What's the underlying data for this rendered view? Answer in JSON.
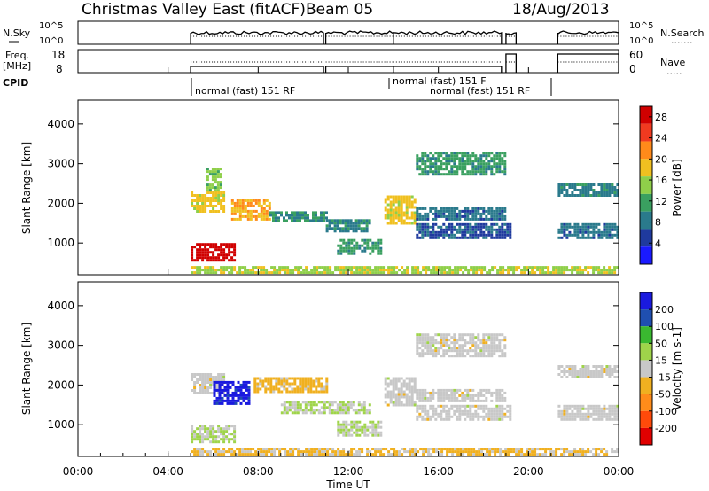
{
  "header": {
    "station": "Christmas Valley East (fitACF)",
    "beam": "Beam 05",
    "date": "18/Aug/2013"
  },
  "sky_panel": {
    "left_label": "N.Sky",
    "left_ticks": [
      "10^5",
      "10^0"
    ],
    "right_ticks": [
      "10^5",
      "10^0"
    ],
    "right_label": "N.Search",
    "legend_dots": "......."
  },
  "freq_panel": {
    "left_label_1": "Freq.",
    "left_label_2": "[MHz]",
    "left_ticks": [
      "18",
      "8"
    ],
    "right_ticks": [
      "60",
      "0"
    ],
    "right_label": "Nave",
    "legend_dots": "....."
  },
  "cpid": {
    "label": "CPID",
    "segments": [
      {
        "text": "normal (fast) 151 RF",
        "start_hour": 5.0
      },
      {
        "text": "normal (fast) 151 F",
        "start_hour": 14.0
      },
      {
        "text": "normal (fast) 151 RF",
        "start_hour": 15.0
      }
    ]
  },
  "colors": {
    "power": [
      "#1a1aff",
      "#1f3a9e",
      "#2a7a8c",
      "#3aa060",
      "#8fcf4a",
      "#f0c020",
      "#ff8a1a",
      "#f03a20",
      "#d00000"
    ],
    "velocity": [
      "#e00000",
      "#ff4a0a",
      "#ff8c1a",
      "#f0b020",
      "#c8c8c8",
      "#9fd44a",
      "#3ab830",
      "#1f4fb0",
      "#1a1adf"
    ]
  },
  "chart_data": [
    {
      "type": "heatmap",
      "name": "Power",
      "ylabel": "Slant Range [km]",
      "yticks": [
        "1000",
        "2000",
        "3000",
        "4000"
      ],
      "ylim": [
        200,
        4600
      ],
      "xlim": [
        0,
        24
      ],
      "colorbar": {
        "label": "Power [dB]",
        "ticks": [
          "4",
          "8",
          "12",
          "16",
          "20",
          "24",
          "28"
        ],
        "range": [
          0,
          30
        ]
      },
      "echo_regions": [
        {
          "start": 5.0,
          "end": 6.9,
          "lo": 550,
          "hi": 1000,
          "value": 29
        },
        {
          "start": 5.0,
          "end": 6.5,
          "lo": 1800,
          "hi": 2300,
          "value": 18
        },
        {
          "start": 5.7,
          "end": 6.4,
          "lo": 2300,
          "hi": 2900,
          "value": 14
        },
        {
          "start": 6.8,
          "end": 8.5,
          "lo": 1600,
          "hi": 2100,
          "value": 20
        },
        {
          "start": 8.5,
          "end": 11.0,
          "lo": 1550,
          "hi": 1800,
          "value": 10
        },
        {
          "start": 11.0,
          "end": 13.0,
          "lo": 1300,
          "hi": 1600,
          "value": 9
        },
        {
          "start": 11.5,
          "end": 13.5,
          "lo": 700,
          "hi": 1100,
          "value": 11
        },
        {
          "start": 13.6,
          "end": 15.0,
          "lo": 1500,
          "hi": 2200,
          "value": 18
        },
        {
          "start": 15.0,
          "end": 19.0,
          "lo": 2700,
          "hi": 3300,
          "value": 11
        },
        {
          "start": 15.0,
          "end": 19.0,
          "lo": 1600,
          "hi": 1900,
          "value": 8
        },
        {
          "start": 15.0,
          "end": 19.2,
          "lo": 1100,
          "hi": 1500,
          "value": 6
        },
        {
          "start": 21.3,
          "end": 24.0,
          "lo": 2200,
          "hi": 2500,
          "value": 9
        },
        {
          "start": 21.3,
          "end": 24.0,
          "lo": 1100,
          "hi": 1500,
          "value": 8
        },
        {
          "start": 5.0,
          "end": 24.0,
          "lo": 220,
          "hi": 420,
          "value": 16
        }
      ]
    },
    {
      "type": "heatmap",
      "name": "Velocity",
      "ylabel": "Slant Range [km]",
      "yticks": [
        "1000",
        "2000",
        "3000",
        "4000"
      ],
      "ylim": [
        200,
        4600
      ],
      "xlim": [
        0,
        24
      ],
      "xticks": [
        "00:00",
        "04:00",
        "08:00",
        "12:00",
        "16:00",
        "20:00",
        "00:00"
      ],
      "xlabel": "Time UT",
      "colorbar": {
        "label": "Velocity [m s-1]",
        "ticks": [
          "200",
          "100",
          "50",
          "15",
          "-15",
          "-50",
          "-100",
          "-200"
        ],
        "range": [
          -250,
          250
        ]
      },
      "echo_regions": [
        {
          "start": 5.0,
          "end": 6.9,
          "lo": 550,
          "hi": 1000,
          "value": 30
        },
        {
          "start": 5.0,
          "end": 6.5,
          "lo": 1800,
          "hi": 2300,
          "value": 0
        },
        {
          "start": 6.0,
          "end": 7.6,
          "lo": 1500,
          "hi": 2100,
          "value": 220
        },
        {
          "start": 7.8,
          "end": 11.0,
          "lo": 1800,
          "hi": 2200,
          "value": -50
        },
        {
          "start": 9.0,
          "end": 13.0,
          "lo": 1300,
          "hi": 1600,
          "value": 30
        },
        {
          "start": 11.5,
          "end": 13.5,
          "lo": 700,
          "hi": 1100,
          "value": 30
        },
        {
          "start": 13.6,
          "end": 15.0,
          "lo": 1500,
          "hi": 2200,
          "value": 0
        },
        {
          "start": 15.0,
          "end": 19.0,
          "lo": 2700,
          "hi": 3300,
          "value": 0
        },
        {
          "start": 15.0,
          "end": 19.0,
          "lo": 1600,
          "hi": 1900,
          "value": 0
        },
        {
          "start": 15.0,
          "end": 19.2,
          "lo": 1100,
          "hi": 1500,
          "value": 0
        },
        {
          "start": 21.3,
          "end": 24.0,
          "lo": 2200,
          "hi": 2500,
          "value": 0
        },
        {
          "start": 21.3,
          "end": 24.0,
          "lo": 1100,
          "hi": 1500,
          "value": 0
        },
        {
          "start": 5.0,
          "end": 24.0,
          "lo": 220,
          "hi": 420,
          "value": -40
        }
      ]
    }
  ]
}
